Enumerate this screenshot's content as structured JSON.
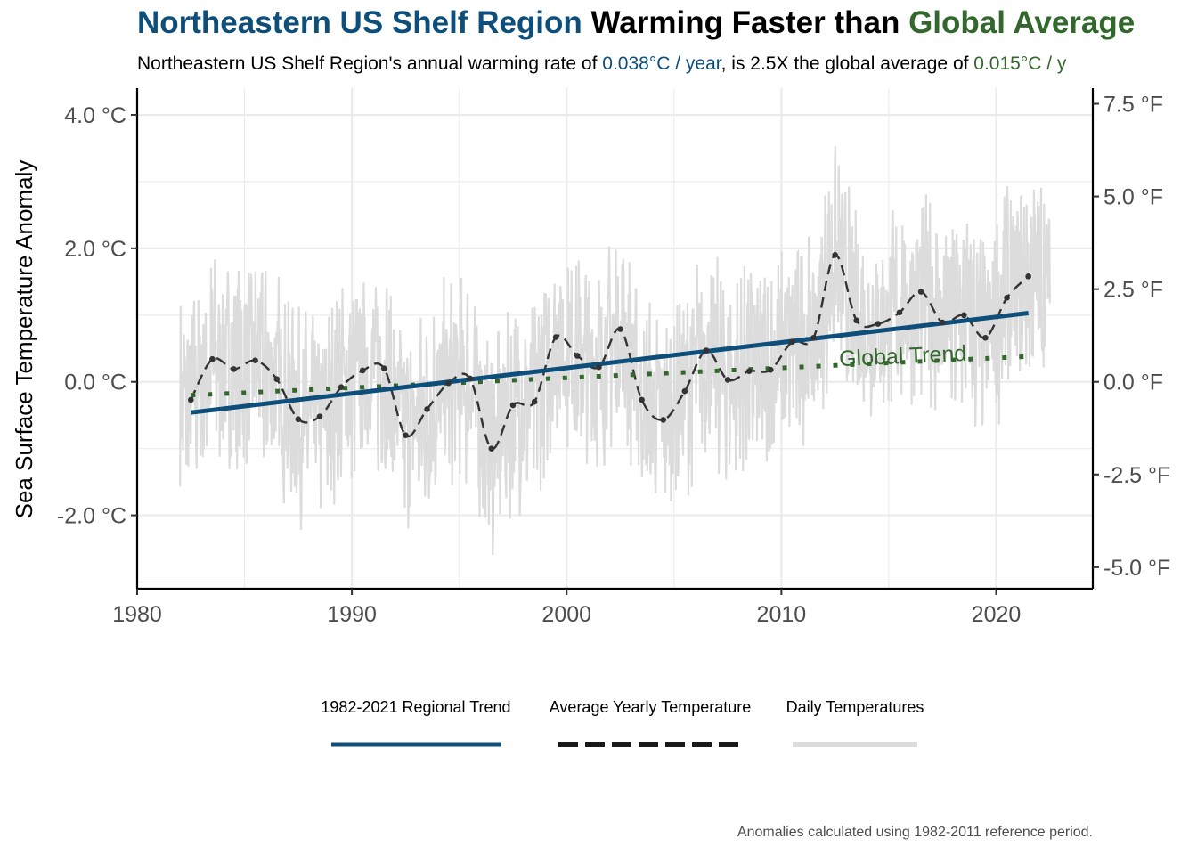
{
  "title": {
    "part1": "Northeastern US Shelf Region",
    "part2": " Warming Faster than ",
    "part3": "Global Average"
  },
  "subtitle": {
    "part1": "Northeastern US Shelf Region's annual warming rate of ",
    "part2": "0.038°C / year",
    "part3": ", is 2.5X the global average of ",
    "part4": "0.015°C / y"
  },
  "caption": "Anomalies calculated using 1982-2011 reference period.",
  "colors": {
    "regional": "#0d4f7a",
    "global": "#33682d",
    "daily": "#dcdcdc",
    "yearly": "#333333"
  },
  "chart_data": {
    "type": "line",
    "ylabel": "Sea Surface Temperature Anomaly",
    "xlim": [
      1980,
      2024.5
    ],
    "ylim": [
      -3.1,
      4.4
    ],
    "grid": true,
    "x_ticks": [
      1980,
      1990,
      2000,
      2010,
      2020
    ],
    "x_tick_labels": [
      "1980",
      "1990",
      "2000",
      "2010",
      "2020"
    ],
    "y_ticks": [
      4,
      2,
      0,
      -2
    ],
    "y_tick_labels": [
      "4.0 °C",
      "2.0 °C",
      "0.0 °C",
      "-2.0 °C"
    ],
    "y2_ticks_f": [
      7.5,
      5,
      2.5,
      0,
      -2.5,
      -5
    ],
    "y2_tick_labels": [
      "7.5 °F",
      "5.0 °F",
      "2.5 °F",
      "0.0 °F",
      "-2.5 °F",
      "-5.0 °F"
    ],
    "legend_position": "bottom",
    "legend": [
      "1982-2021 Regional Trend",
      "Average Yearly Temperature",
      "Daily Temperatures"
    ],
    "annotation": "Global Trend",
    "series": [
      {
        "name": "Average Yearly Temperature",
        "x": [
          1982.5,
          1983.5,
          1984.5,
          1985.5,
          1986.5,
          1987.5,
          1988.5,
          1989.5,
          1990.5,
          1991.5,
          1992.5,
          1993.5,
          1994.5,
          1995.5,
          1996.5,
          1997.5,
          1998.5,
          1999.5,
          2000.5,
          2001.5,
          2002.5,
          2003.5,
          2004.5,
          2005.5,
          2006.5,
          2007.5,
          2008.5,
          2009.5,
          2010.5,
          2011.5,
          2012.5,
          2013.5,
          2014.5,
          2015.5,
          2016.5,
          2017.5,
          2018.5,
          2019.5,
          2020.5,
          2021.5
        ],
        "y": [
          -0.27,
          0.34,
          0.19,
          0.32,
          0.04,
          -0.56,
          -0.52,
          -0.08,
          0.17,
          0.2,
          -0.8,
          -0.41,
          -0.02,
          0.05,
          -1.0,
          -0.35,
          -0.3,
          0.67,
          0.39,
          0.22,
          0.79,
          -0.27,
          -0.57,
          -0.14,
          0.47,
          0.03,
          0.16,
          0.18,
          0.6,
          0.66,
          1.9,
          0.92,
          0.87,
          1.04,
          1.35,
          0.89,
          1.0,
          0.66,
          1.26,
          1.58
        ]
      },
      {
        "name": "1982-2021 Regional Trend",
        "x": [
          1982.5,
          2021.5
        ],
        "y": [
          -0.46,
          1.03
        ]
      },
      {
        "name": "Global Trend",
        "x": [
          1982.5,
          2021.5
        ],
        "y": [
          -0.2,
          0.38
        ]
      },
      {
        "name": "Daily Temperatures",
        "x_range": [
          1982,
          2022.5
        ],
        "y_range": [
          -2.8,
          4.1
        ]
      }
    ]
  }
}
